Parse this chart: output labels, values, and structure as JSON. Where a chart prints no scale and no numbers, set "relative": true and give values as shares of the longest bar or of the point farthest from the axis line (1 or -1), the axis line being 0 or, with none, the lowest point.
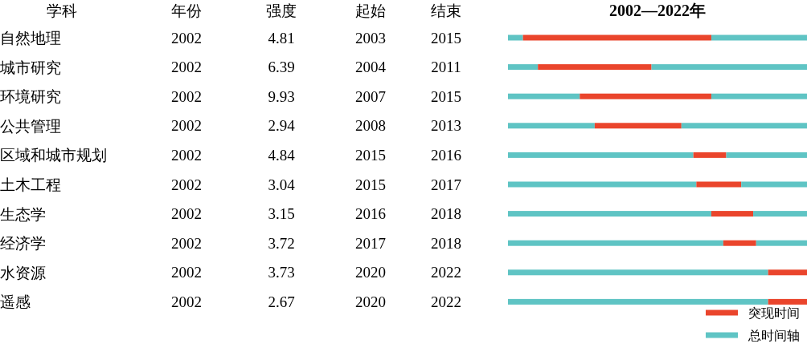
{
  "chart_data": [
    {
      "type": "other",
      "ylabel": "学科",
      "data_labels": true,
      "categories": [
        "自然地理",
        "城市研究",
        "环境研究",
        "公共管理",
        "区域和城市规划",
        "土木工程",
        "生态学",
        "经济学",
        "水资源",
        "遥感"
      ],
      "series": [
        {
          "name": "年份",
          "values": [
            2002,
            2002,
            2002,
            2002,
            2002,
            2002,
            2002,
            2002,
            2002,
            2002
          ]
        },
        {
          "name": "强度",
          "values": [
            4.81,
            6.39,
            9.93,
            2.94,
            4.84,
            3.04,
            3.15,
            3.72,
            3.73,
            2.67
          ]
        },
        {
          "name": "起始",
          "values": [
            2003,
            2004,
            2007,
            2008,
            2015,
            2015,
            2016,
            2017,
            2020,
            2020
          ]
        },
        {
          "name": "结束",
          "values": [
            2015,
            2011,
            2015,
            2013,
            2016,
            2017,
            2018,
            2018,
            2022,
            2022
          ]
        }
      ]
    },
    {
      "type": "bar",
      "orientation": "horizontal",
      "stacked": true,
      "relative": true,
      "title": "2002—2022年",
      "legend": "bottom right",
      "categories": [
        null,
        null,
        null,
        null,
        null,
        null,
        null,
        null,
        null,
        null
      ],
      "series": [
        {
          "name": "总时间轴",
          "color": "#5fc4c4",
          "values": [
            0.05,
            0.1,
            0.24,
            0.29,
            0.62,
            0.63,
            0.68,
            0.72,
            0.87,
            0.87
          ]
        },
        {
          "name": "突现时间",
          "color": "#ea452c",
          "values": [
            0.63,
            0.38,
            0.44,
            0.29,
            0.11,
            0.15,
            0.14,
            0.11,
            0.13,
            0.13
          ]
        },
        {
          "color": "#5fc4c4",
          "values": [
            0.32,
            0.52,
            0.32,
            0.42,
            0.27,
            0.22,
            0.18,
            0.17,
            0,
            0
          ]
        }
      ]
    }
  ]
}
